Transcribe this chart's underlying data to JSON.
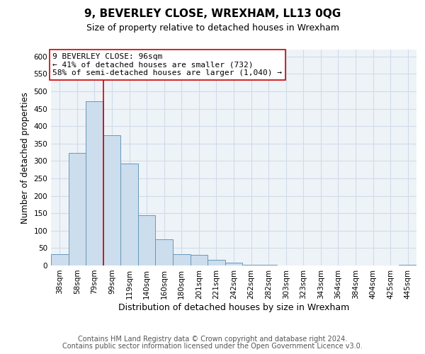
{
  "title": "9, BEVERLEY CLOSE, WREXHAM, LL13 0QG",
  "subtitle": "Size of property relative to detached houses in Wrexham",
  "xlabel": "Distribution of detached houses by size in Wrexham",
  "ylabel": "Number of detached properties",
  "bin_labels": [
    "38sqm",
    "58sqm",
    "79sqm",
    "99sqm",
    "119sqm",
    "140sqm",
    "160sqm",
    "180sqm",
    "201sqm",
    "221sqm",
    "242sqm",
    "262sqm",
    "282sqm",
    "303sqm",
    "323sqm",
    "343sqm",
    "364sqm",
    "384sqm",
    "404sqm",
    "425sqm",
    "445sqm"
  ],
  "bar_values": [
    33,
    323,
    471,
    374,
    293,
    145,
    75,
    33,
    30,
    17,
    8,
    2,
    2,
    0,
    0,
    0,
    0,
    0,
    0,
    0,
    3
  ],
  "bar_color": "#ccdded",
  "bar_edge_color": "#6699bb",
  "vline_x": 2.5,
  "vline_color": "#cc0000",
  "annotation_text": "9 BEVERLEY CLOSE: 96sqm\n← 41% of detached houses are smaller (732)\n58% of semi-detached houses are larger (1,040) →",
  "annotation_box_color": "#ffffff",
  "annotation_box_edge_color": "#cc0000",
  "ylim": [
    0,
    620
  ],
  "yticks": [
    0,
    50,
    100,
    150,
    200,
    250,
    300,
    350,
    400,
    450,
    500,
    550,
    600
  ],
  "grid_color": "#d0dce8",
  "bg_color": "#eef3f8",
  "footer_line1": "Contains HM Land Registry data © Crown copyright and database right 2024.",
  "footer_line2": "Contains public sector information licensed under the Open Government Licence v3.0.",
  "title_fontsize": 11,
  "subtitle_fontsize": 9,
  "xlabel_fontsize": 9,
  "ylabel_fontsize": 8.5,
  "tick_fontsize": 7.5,
  "footer_fontsize": 7
}
